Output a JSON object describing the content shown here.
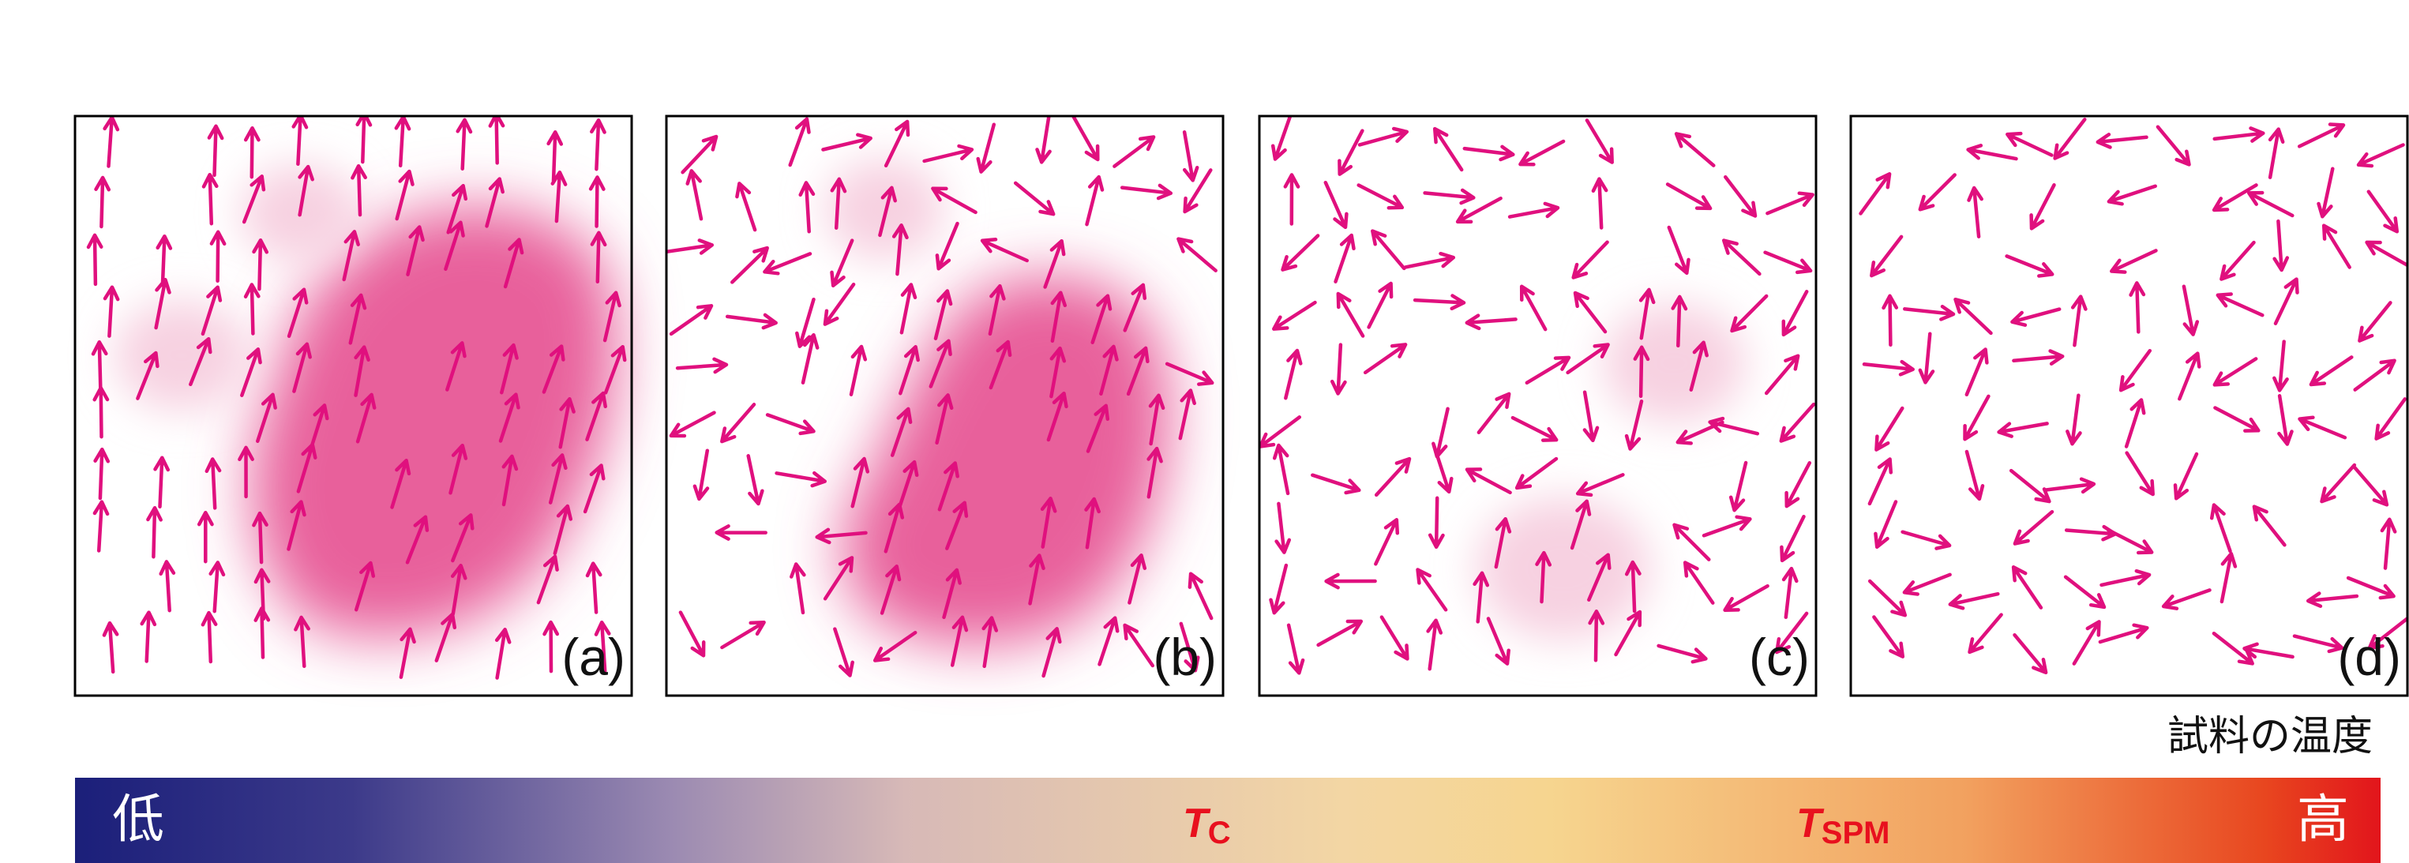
{
  "panels": [
    {
      "label": "(a)"
    },
    {
      "label": "(b)"
    },
    {
      "label": "(c)"
    },
    {
      "label": "(d)"
    }
  ],
  "axis_caption": "試料の温度",
  "colorbar": {
    "low_label": "低",
    "high_label": "高",
    "markers": [
      {
        "symbol": "T",
        "subscript": "C"
      },
      {
        "symbol": "T",
        "subscript": "SPM"
      }
    ],
    "gradient_colors": [
      "#1b1f7a",
      "#3c3a8a",
      "#9c8bb2",
      "#d7b9b7",
      "#f3d6a4",
      "#f6d58f",
      "#f2a15f",
      "#e8461f",
      "#e2151c"
    ]
  },
  "colors": {
    "arrow": "#e0107e",
    "cluster_strong": "#e8609b",
    "cluster_light": "#f7d1e1",
    "marker_text": "#e8101e",
    "frame": "#000000"
  }
}
